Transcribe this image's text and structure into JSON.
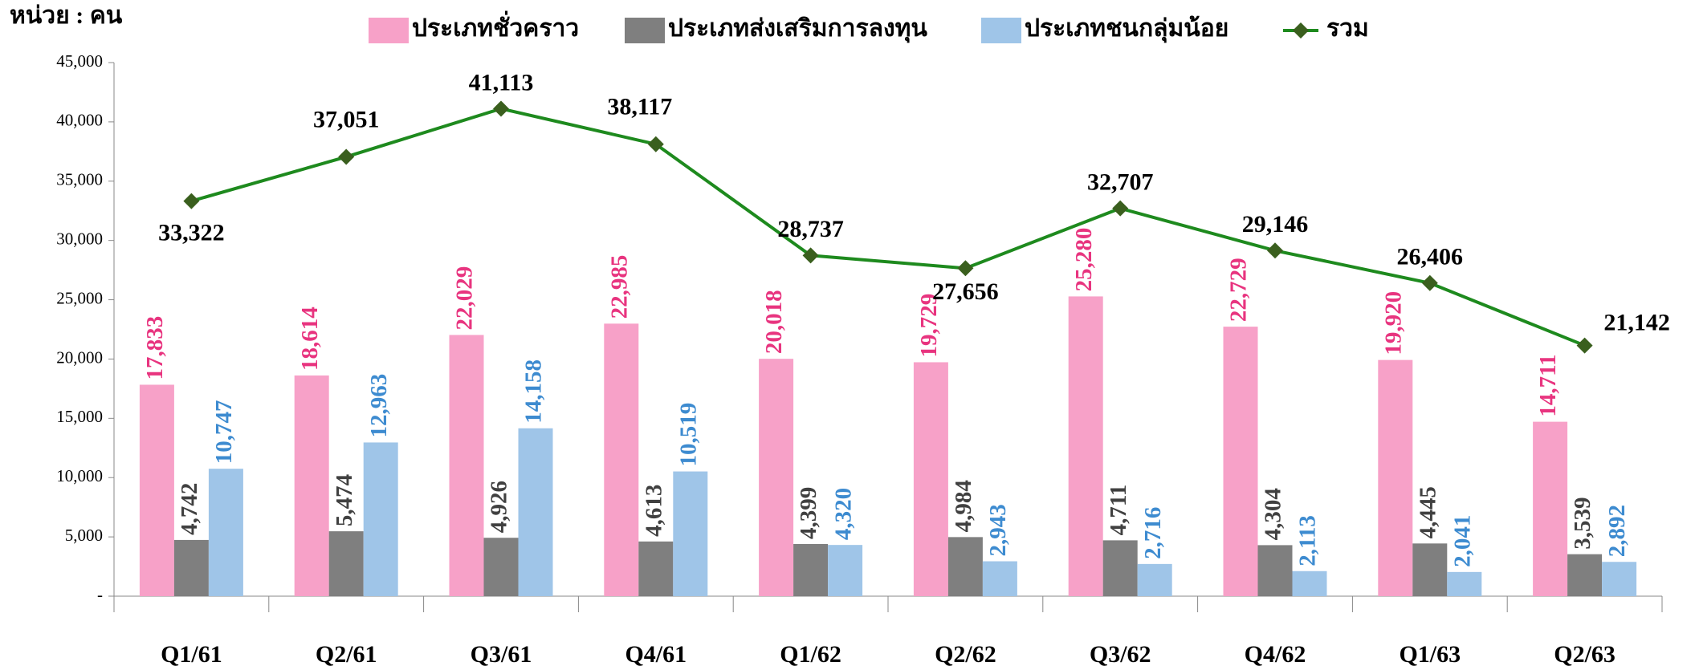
{
  "chart_data": {
    "type": "bar",
    "unit_label": "หน่วย : คน",
    "categories": [
      "Q1/61",
      "Q2/61",
      "Q3/61",
      "Q4/61",
      "Q1/62",
      "Q2/62",
      "Q3/62",
      "Q4/62",
      "Q1/63",
      "Q2/63"
    ],
    "series": [
      {
        "name": "ประเภทชั่วคราว",
        "color": "#f7a1c8",
        "label_color": "#e8347f",
        "values": [
          17833,
          18614,
          22029,
          22985,
          20018,
          19729,
          25280,
          22729,
          19920,
          14711
        ],
        "value_labels": [
          "17,833",
          "18,614",
          "22,029",
          "22,985",
          "20,018",
          "19,729",
          "25,280",
          "22,729",
          "19,920",
          "14,711"
        ]
      },
      {
        "name": "ประเภทส่งเสริมการลงทุน",
        "color": "#7f7f7f",
        "label_color": "#404040",
        "values": [
          4742,
          5474,
          4926,
          4613,
          4399,
          4984,
          4711,
          4304,
          4445,
          3539
        ],
        "value_labels": [
          "4,742",
          "5,474",
          "4,926",
          "4,613",
          "4,399",
          "4,984",
          "4,711",
          "4,304",
          "4,445",
          "3,539"
        ]
      },
      {
        "name": "ประเภทชนกลุ่มน้อย",
        "color": "#9fc5e8",
        "label_color": "#3d8bd0",
        "values": [
          10747,
          12963,
          14158,
          10519,
          4320,
          2943,
          2716,
          2113,
          2041,
          2892
        ],
        "value_labels": [
          "10,747",
          "12,963",
          "14,158",
          "10,519",
          "4,320",
          "2,943",
          "2,716",
          "2,113",
          "2,041",
          "2,892"
        ]
      },
      {
        "name": "รวม",
        "type": "line",
        "color": "#1e8a1e",
        "marker_color": "#3a5f1e",
        "label_color": "#000000",
        "values": [
          33322,
          37051,
          41113,
          38117,
          28737,
          27656,
          32707,
          29146,
          26406,
          21142
        ],
        "value_labels": [
          "33,322",
          "37,051",
          "41,113",
          "38,117",
          "28,737",
          "27,656",
          "32,707",
          "29,146",
          "26,406",
          "21,142"
        ]
      }
    ],
    "ylim": [
      0,
      45000
    ],
    "yticks": [
      {
        "value": 0,
        "label": "-"
      },
      {
        "value": 5000,
        "label": "5,000"
      },
      {
        "value": 10000,
        "label": "10,000"
      },
      {
        "value": 15000,
        "label": "15,000"
      },
      {
        "value": 20000,
        "label": "20,000"
      },
      {
        "value": 25000,
        "label": "25,000"
      },
      {
        "value": 30000,
        "label": "30,000"
      },
      {
        "value": 35000,
        "label": "35,000"
      },
      {
        "value": 40000,
        "label": "40,000"
      },
      {
        "value": 45000,
        "label": "45,000"
      }
    ],
    "legend": "top"
  }
}
